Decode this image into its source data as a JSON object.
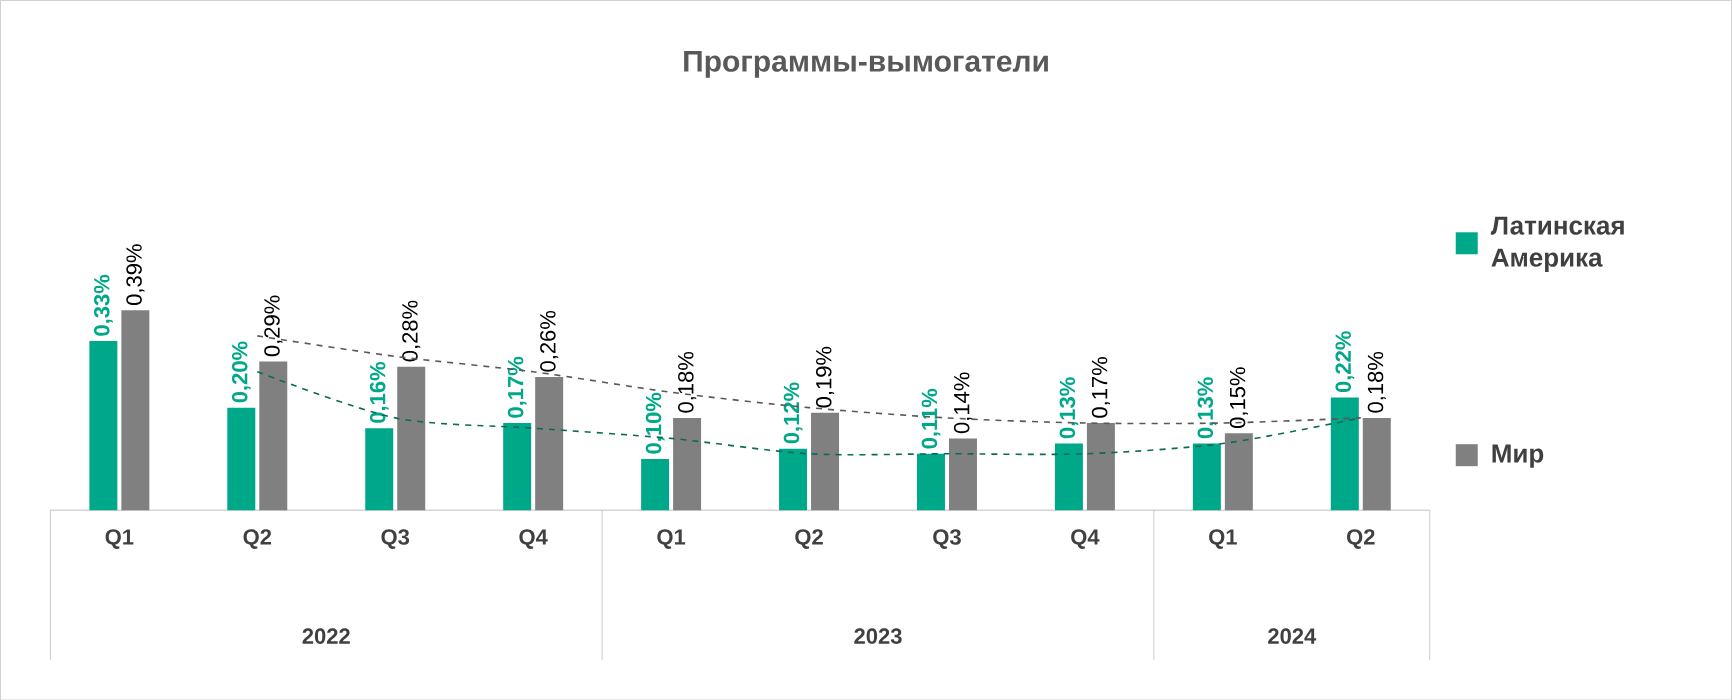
{
  "chart_data": {
    "type": "bar",
    "title": "Программы-вымогатели",
    "categories": [
      "Q1",
      "Q2",
      "Q3",
      "Q4",
      "Q1",
      "Q2",
      "Q3",
      "Q4",
      "Q1",
      "Q2"
    ],
    "annotations": [
      "2022",
      "2023",
      "2024"
    ],
    "legend": "right",
    "series": [
      {
        "name": "Латинская Америка",
        "color": "#00a88a",
        "values": [
          0.33,
          0.2,
          0.16,
          0.17,
          0.1,
          0.12,
          0.11,
          0.13,
          0.13,
          0.22
        ],
        "value_labels": [
          "0,33%",
          "0,20%",
          "0,16%",
          "0,17%",
          "0,10%",
          "0,12%",
          "0,11%",
          "0,13%",
          "0,13%",
          "0,22%"
        ]
      },
      {
        "name": "Мир",
        "color": "#808080",
        "values": [
          0.39,
          0.29,
          0.28,
          0.26,
          0.18,
          0.19,
          0.14,
          0.17,
          0.15,
          0.18
        ],
        "value_labels": [
          "0,39%",
          "0,29%",
          "0,28%",
          "0,26%",
          "0,18%",
          "0,19%",
          "0,14%",
          "0,17%",
          "0,15%",
          "0,18%"
        ]
      },
      {
        "type": "line",
        "color": "#0b6b58",
        "line_style": "dashed",
        "values": [
          null,
          0.27,
          0.18,
          0.16,
          0.14,
          0.11,
          0.11,
          0.11,
          0.13,
          0.18
        ]
      },
      {
        "type": "line",
        "color": "#595959",
        "line_style": "dashed",
        "values": [
          null,
          0.34,
          0.3,
          0.27,
          0.23,
          0.2,
          0.18,
          0.17,
          0.17,
          0.18
        ]
      }
    ]
  }
}
